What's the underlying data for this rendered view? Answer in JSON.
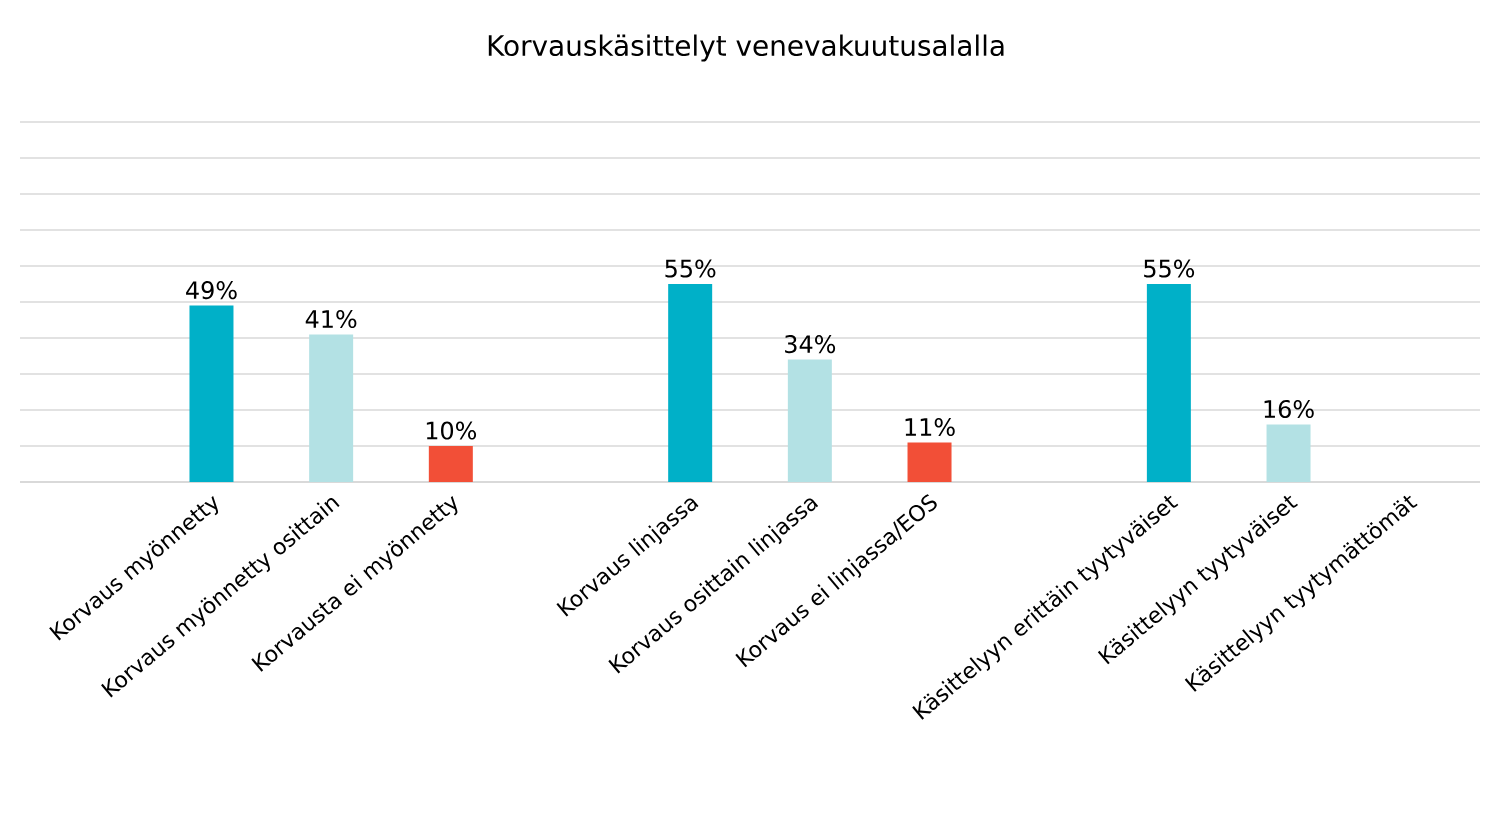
{
  "chart_data": {
    "type": "bar",
    "title": "Korvauskäsittelyt venevakuutusalalla",
    "categories": [
      "Korvaus myönnetty",
      "Korvaus myönnetty osittain",
      "Korvausta ei myönnetty",
      null,
      "Korvaus linjassa",
      "Korvaus osittain linjassa",
      "Korvaus ei linjassa/EOS",
      null,
      "Käsittelyyn erittäin tyytyväiset",
      "Käsittelyyn tyytyväiset",
      "Käsittelyyn tyytymättömät"
    ],
    "values": [
      49,
      41,
      10,
      null,
      55,
      34,
      11,
      null,
      55,
      16,
      null
    ],
    "value_labels": [
      "49%",
      "41%",
      "10%",
      null,
      "55%",
      "34%",
      "11%",
      null,
      "55%",
      "16%",
      null
    ],
    "colors": [
      "#00b0c8",
      "#b3e1e4",
      "#f24f37",
      null,
      "#00b0c8",
      "#b3e1e4",
      "#f24f37",
      null,
      "#00b0c8",
      "#b3e1e4",
      null
    ],
    "ylim": [
      0,
      100
    ],
    "yticks": [
      {
        "value": 0,
        "label": null
      },
      {
        "value": 10,
        "label": null
      },
      {
        "value": 20,
        "label": null
      },
      {
        "value": 30,
        "label": null
      },
      {
        "value": 40,
        "label": null
      },
      {
        "value": 50,
        "label": null
      },
      {
        "value": 60,
        "label": null
      },
      {
        "value": 70,
        "label": null
      },
      {
        "value": 80,
        "label": null
      },
      {
        "value": 90,
        "label": null
      },
      {
        "value": 100,
        "label": null
      }
    ],
    "grid": "y",
    "tick_labels": "x"
  }
}
